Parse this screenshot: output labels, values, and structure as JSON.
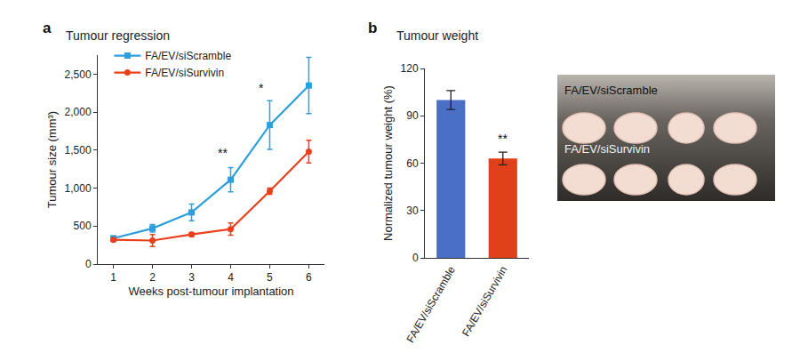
{
  "panel_labels": [
    "a",
    "b"
  ],
  "chart_data": [
    {
      "type": "line",
      "title": "Tumour regression",
      "x_label": "Weeks post-tumour implantation",
      "y_label": "Tumour size (mm³)",
      "x": [
        1,
        2,
        3,
        4,
        5,
        6
      ],
      "series": [
        {
          "name": "FA/EV/siScramble",
          "color": "#2e9fdc",
          "marker": "square",
          "values": [
            340,
            470,
            680,
            1110,
            1830,
            2350
          ],
          "errors": [
            30,
            50,
            110,
            160,
            320,
            370
          ]
        },
        {
          "name": "FA/EV/siSurvivin",
          "color": "#e8401c",
          "marker": "circle",
          "values": [
            320,
            310,
            390,
            460,
            960,
            1480
          ],
          "errors": [
            20,
            80,
            25,
            80,
            40,
            150
          ]
        }
      ],
      "xlim": [
        0.6,
        6.4
      ],
      "xticks": [
        1,
        2,
        3,
        4,
        5,
        6
      ],
      "ylim": [
        0,
        2750
      ],
      "yticks": [
        0,
        500,
        {
          "value": 1000,
          "label": "1,000"
        },
        {
          "value": 1500,
          "label": "1,500"
        },
        {
          "value": 2000,
          "label": "2,000"
        },
        {
          "value": 2500,
          "label": "2,500"
        }
      ],
      "legend": "upper left",
      "grid": false,
      "annotations": [
        {
          "text": "**",
          "x": 4,
          "y": 1350
        },
        {
          "text": "*",
          "x": 5,
          "y": 2200
        }
      ]
    },
    {
      "type": "bar",
      "title": "Tumour weight",
      "y_label": "Normalized tumour weight (%)",
      "categories": [
        "FA/EV/siScramble",
        "FA/EV/siSurvivin"
      ],
      "values": [
        100,
        63
      ],
      "errors": [
        6,
        4
      ],
      "colors": [
        "#4a6fc7",
        "#e0401a"
      ],
      "ylim": [
        0,
        120
      ],
      "yticks": [
        0,
        30,
        60,
        90,
        120
      ],
      "grid": false,
      "annotations": [
        {
          "text": "**",
          "x": "FA/EV/siSurvivin",
          "y": 70
        }
      ]
    }
  ],
  "image_panel": {
    "labels": [
      "FA/EV/siScramble",
      "FA/EV/siSurvivin"
    ]
  }
}
